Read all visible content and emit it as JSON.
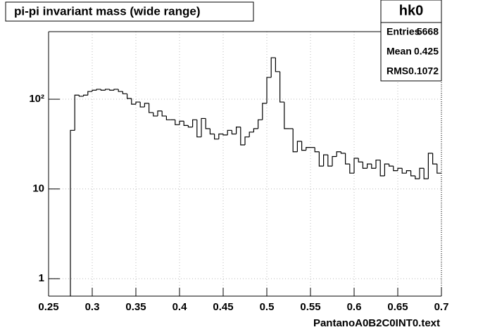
{
  "chart_data": {
    "type": "histogram",
    "title": "pi-pi invariant mass (wide range)",
    "x_label": "PantanoA0B2C0INT0.text",
    "stats": {
      "name": "hk0",
      "rows": [
        [
          "Entries",
          "5668"
        ],
        [
          "Mean",
          "0.425"
        ],
        [
          "RMS",
          "0.1072"
        ]
      ]
    },
    "bins": [
      0.275,
      0.28,
      0.285,
      0.29,
      0.295,
      0.3,
      0.305,
      0.31,
      0.315,
      0.32,
      0.325,
      0.33,
      0.335,
      0.34,
      0.345,
      0.35,
      0.355,
      0.36,
      0.365,
      0.37,
      0.375,
      0.38,
      0.385,
      0.39,
      0.395,
      0.4,
      0.405,
      0.41,
      0.415,
      0.42,
      0.425,
      0.43,
      0.435,
      0.44,
      0.445,
      0.45,
      0.455,
      0.46,
      0.465,
      0.47,
      0.475,
      0.48,
      0.485,
      0.49,
      0.495,
      0.5,
      0.505,
      0.51,
      0.515,
      0.52,
      0.525,
      0.53,
      0.535,
      0.54,
      0.545,
      0.55,
      0.555,
      0.56,
      0.565,
      0.57,
      0.575,
      0.58,
      0.585,
      0.59,
      0.595,
      0.6,
      0.605,
      0.61,
      0.615,
      0.62,
      0.625,
      0.63,
      0.635,
      0.64,
      0.645,
      0.65,
      0.655,
      0.66,
      0.665,
      0.67,
      0.675,
      0.68,
      0.685,
      0.69,
      0.695,
      0.7
    ],
    "values": [
      45,
      111,
      108,
      111,
      122,
      126,
      129,
      126,
      129,
      126,
      129,
      122,
      115,
      102,
      88,
      93,
      82,
      90,
      71,
      65,
      74,
      65,
      59,
      59,
      52,
      57,
      51,
      49,
      59,
      38,
      61,
      47,
      41,
      36,
      41,
      40,
      45,
      41,
      49,
      31,
      38,
      43,
      47,
      59,
      90,
      175,
      290,
      203,
      93,
      47,
      47,
      26,
      34,
      27,
      29,
      29,
      26,
      18,
      24,
      18,
      23,
      26,
      25,
      19,
      15,
      22,
      20,
      17,
      19,
      17,
      21,
      14,
      19,
      18,
      16,
      17,
      15,
      16,
      14,
      13,
      17,
      13,
      25,
      19,
      15
    ],
    "color": "#000000",
    "xlim": [
      0.25,
      0.7
    ],
    "xticks": [
      0.25,
      0.3,
      0.35,
      0.4,
      0.45,
      0.5,
      0.55,
      0.6,
      0.65,
      0.7
    ],
    "ylim": [
      0.64,
      566
    ],
    "yticks": [
      1,
      10,
      {
        "value": 100,
        "label": "10²"
      }
    ],
    "log_y": true,
    "grid": true
  }
}
